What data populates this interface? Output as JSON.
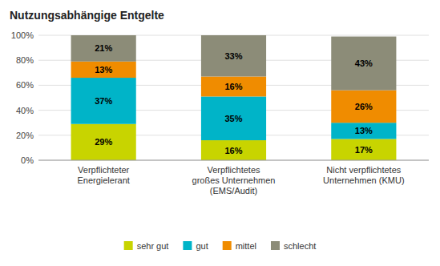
{
  "chart_data": {
    "type": "bar",
    "title": "Nutzungsabhängige Entgelte",
    "categories": [
      "Verpflichteter\nEnergielerant",
      "Verpflichtetes\ngroßes Unternehmen\n(EMS/Audit)",
      "Nicht verpflichtetes\nUnternehmen (KMU)"
    ],
    "series": [
      {
        "name": "sehr gut",
        "color": "#c8d400",
        "values": [
          29,
          16,
          17
        ],
        "value_labels": [
          "29%",
          "16%",
          "17%"
        ]
      },
      {
        "name": "gut",
        "color": "#00b4c8",
        "values": [
          37,
          35,
          13
        ],
        "value_labels": [
          "37%",
          "35%",
          "13%"
        ]
      },
      {
        "name": "mittel",
        "color": "#f08c00",
        "values": [
          13,
          16,
          26
        ],
        "value_labels": [
          "13%",
          "16%",
          "26%"
        ]
      },
      {
        "name": "schlecht",
        "color": "#8c8c78",
        "values": [
          21,
          33,
          43
        ],
        "value_labels": [
          "21%",
          "33%",
          "43%"
        ]
      }
    ],
    "ylim": [
      0,
      100
    ],
    "yticks": [
      {
        "value": 0,
        "label": "0%"
      },
      {
        "value": 20,
        "label": "20%"
      },
      {
        "value": 40,
        "label": "40%"
      },
      {
        "value": 60,
        "label": "60%"
      },
      {
        "value": 80,
        "label": "80%"
      },
      {
        "value": 100,
        "label": "100%"
      }
    ],
    "stacked": true,
    "data_labels": true,
    "grid": true,
    "legend": "bottom"
  }
}
